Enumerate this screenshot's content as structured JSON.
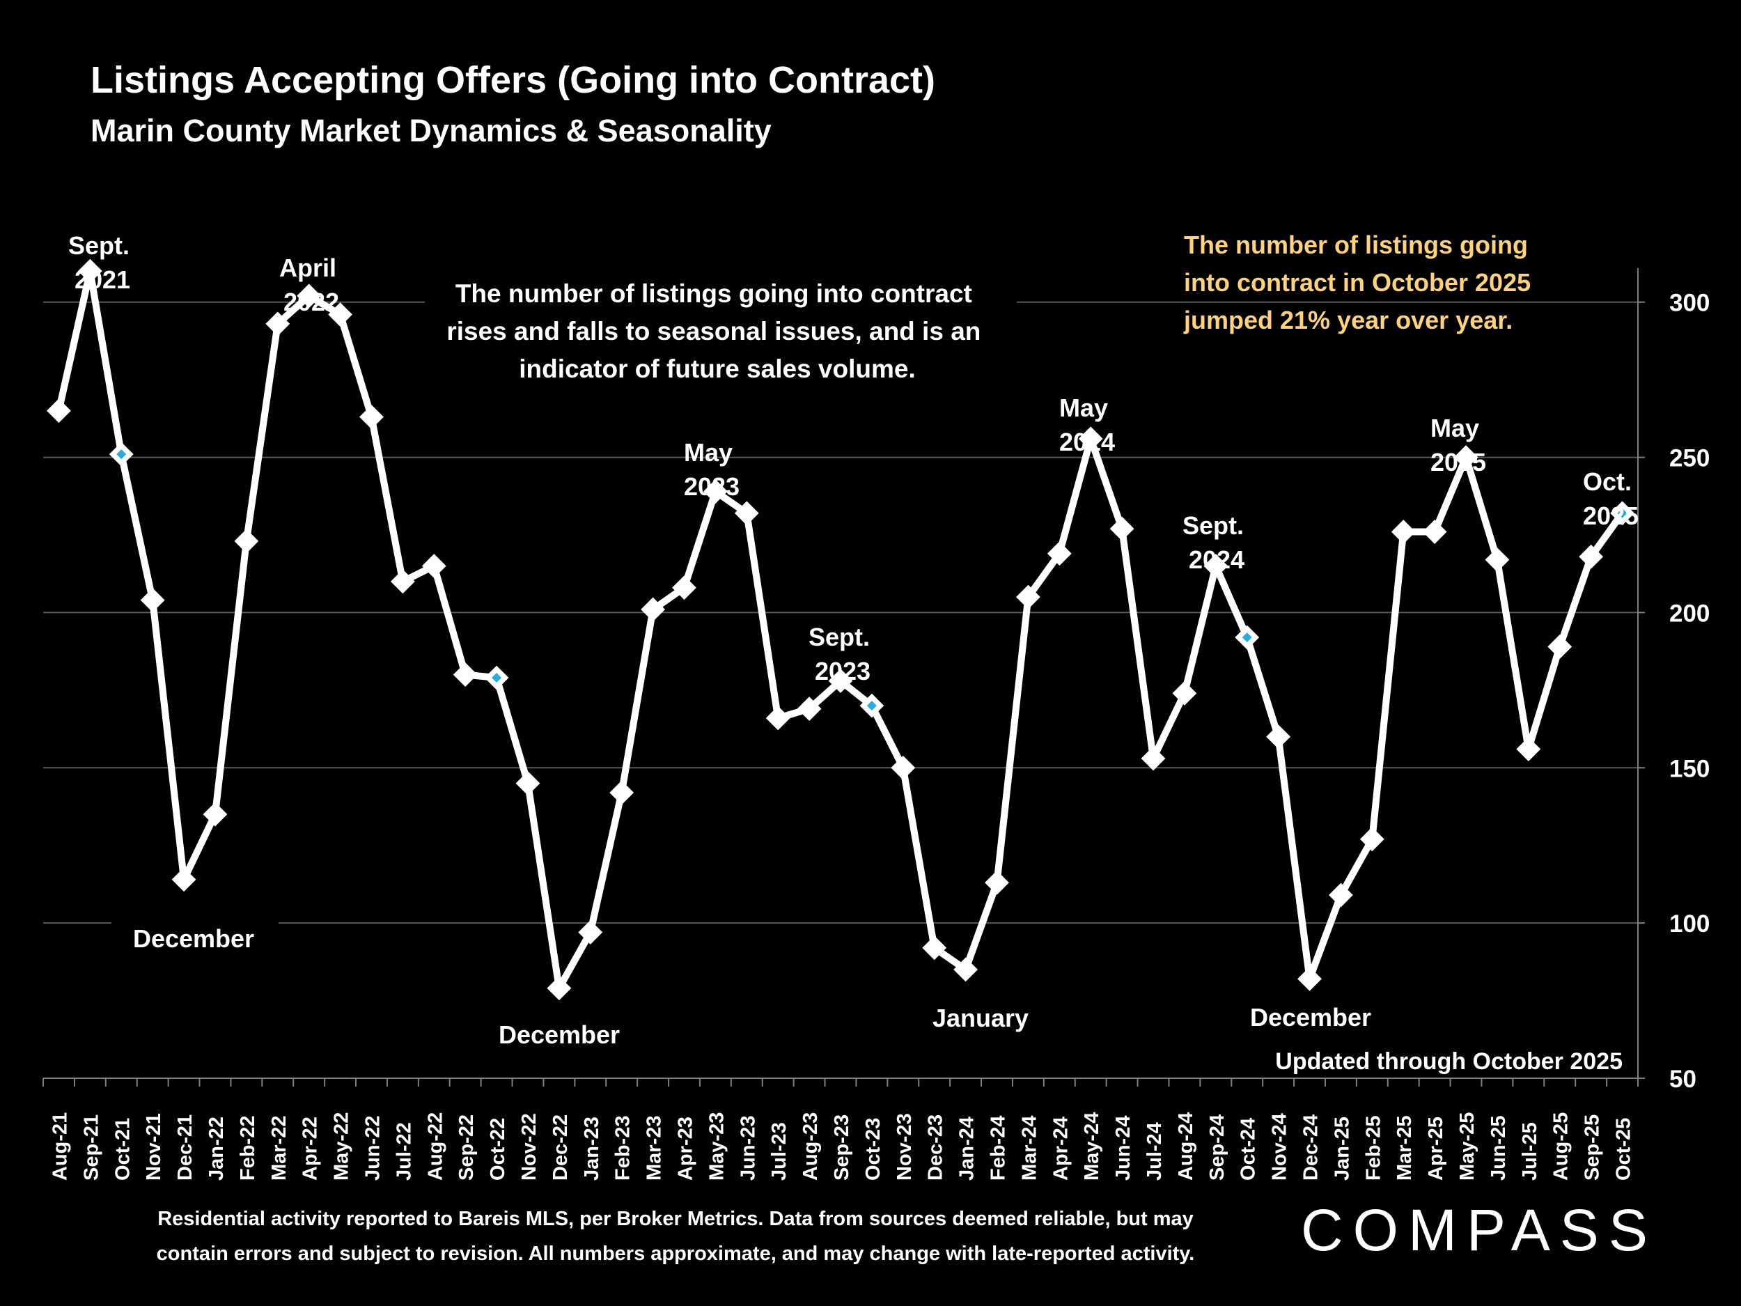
{
  "title": "Listings Accepting Offers (Going into Contract)",
  "subtitle": "Marin County Market Dynamics & Seasonality",
  "colors": {
    "background": "#000000",
    "line": "#ffffff",
    "highlight_marker": "#29abe2",
    "callout_text": "#ffd27f",
    "grid": "#595959"
  },
  "chart_data": {
    "type": "line",
    "title": "Listings Accepting Offers (Going into Contract)",
    "subtitle": "Marin County Market Dynamics & Seasonality",
    "categories": [
      "Aug-21",
      "Sep-21",
      "Oct-21",
      "Nov-21",
      "Dec-21",
      "Jan-22",
      "Feb-22",
      "Mar-22",
      "Apr-22",
      "May-22",
      "Jun-22",
      "Jul-22",
      "Aug-22",
      "Sep-22",
      "Oct-22",
      "Nov-22",
      "Dec-22",
      "Jan-23",
      "Feb-23",
      "Mar-23",
      "Apr-23",
      "May-23",
      "Jun-23",
      "Jul-23",
      "Aug-23",
      "Sep-23",
      "Oct-23",
      "Nov-23",
      "Dec-23",
      "Jan-24",
      "Feb-24",
      "Mar-24",
      "Apr-24",
      "May-24",
      "Jun-24",
      "Jul-24",
      "Aug-24",
      "Sep-24",
      "Oct-24",
      "Nov-24",
      "Dec-24",
      "Jan-25",
      "Feb-25",
      "Mar-25",
      "Apr-25",
      "May-25",
      "Jun-25",
      "Jul-25",
      "Aug-25",
      "Sep-25",
      "Oct-25"
    ],
    "series": [
      {
        "values": [
          265,
          310,
          251,
          204,
          114,
          135,
          223,
          293,
          302,
          296,
          263,
          210,
          215,
          180,
          179,
          145,
          79,
          97,
          142,
          201,
          208,
          239,
          232,
          166,
          169,
          178,
          170,
          150,
          92,
          85,
          113,
          205,
          219,
          256,
          227,
          153,
          174,
          215,
          192,
          160,
          82,
          109,
          127,
          226,
          226,
          250,
          217,
          156,
          189,
          218,
          232
        ]
      }
    ],
    "highlighted_points": [
      "Oct-21",
      "Oct-22",
      "Oct-23",
      "Oct-24",
      "Oct-25"
    ],
    "y_axis": {
      "position": "right",
      "min": 50,
      "max": 300,
      "ticks": [
        50,
        100,
        150,
        200,
        250,
        300
      ]
    },
    "grid": true,
    "legend": "none"
  },
  "annotations": {
    "peaks": [
      {
        "line1": "Sept.",
        "line2": "2021"
      },
      {
        "line1": "April",
        "line2": "2022"
      },
      {
        "line1": "May",
        "line2": "2023"
      },
      {
        "line1": "Sept.",
        "line2": "2023"
      },
      {
        "line1": "May",
        "line2": "2024"
      },
      {
        "line1": "Sept.",
        "line2": "2024"
      },
      {
        "line1": "May",
        "line2": "2025"
      },
      {
        "line1": "Oct.",
        "line2": "2025"
      }
    ],
    "troughs": [
      "December",
      "December",
      "January",
      "December"
    ],
    "center_note": [
      "The number of listings going into contract",
      "rises and falls to seasonal issues, and is an",
      "indicator of future sales volume."
    ],
    "callout": [
      "The  number  of  listings  going",
      "into contract in October 2025",
      "jumped 21% year over year."
    ],
    "updated": "Updated through October 2025"
  },
  "footnote": [
    "Residential activity reported to Bareis MLS, per Broker Metrics. Data from sources deemed reliable, but may",
    "contain errors and subject to revision. All numbers approximate, and may change with late-reported activity."
  ],
  "logo": "COMPASS"
}
